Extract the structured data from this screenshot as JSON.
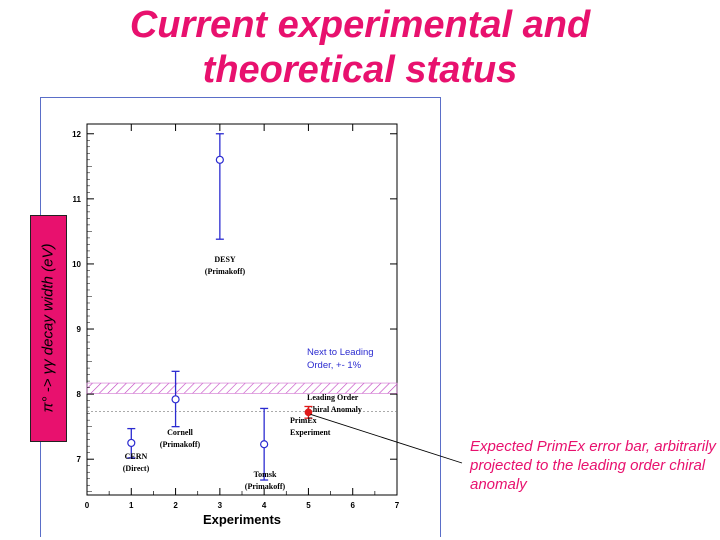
{
  "title": {
    "line1": "Current experimental and",
    "line2": "theoretical status"
  },
  "side_note": "Expected PrimEx error bar, arbitrarily projected to the leading order chiral anomaly",
  "colors": {
    "title": "#e8116e",
    "errorbar": "#2b2bd0",
    "primex": "#e01818",
    "band": "#c040c0",
    "frame": "#5a6ec8"
  },
  "chart_data": {
    "type": "scatter",
    "xlabel": "Experiments",
    "ylabel": "π° -> γγ  decay width (eV)",
    "xlim": [
      0,
      7
    ],
    "ylim": [
      6.45,
      12.15
    ],
    "x_ticks": [
      "0",
      "1",
      "2",
      "3",
      "4",
      "5",
      "6",
      "7"
    ],
    "y_ticks": [
      "7",
      "8",
      "9",
      "10",
      "11",
      "12"
    ],
    "points": [
      {
        "x": 1,
        "y": 7.25,
        "err_low": 7.02,
        "err_high": 7.47,
        "label": [
          "CERN",
          "(Direct)"
        ],
        "style": "open"
      },
      {
        "x": 2,
        "y": 7.92,
        "err_low": 7.5,
        "err_high": 8.35,
        "label": [
          "Cornell",
          "(Primakoff)"
        ],
        "style": "open"
      },
      {
        "x": 3,
        "y": 11.6,
        "err_low": 10.38,
        "err_high": 12.0,
        "label": [
          "DESY",
          "(Primakoff)"
        ],
        "style": "open"
      },
      {
        "x": 4,
        "y": 7.23,
        "err_low": 6.68,
        "err_high": 7.78,
        "label": [
          "Tomsk",
          "(Primakoff)"
        ],
        "style": "open"
      },
      {
        "x": 5,
        "y": 7.72,
        "err_low": 7.63,
        "err_high": 7.81,
        "label": [
          "PrimEx",
          "Experiment"
        ],
        "style": "filled"
      }
    ],
    "band": {
      "y_low": 8.01,
      "y_high": 8.17,
      "label": [
        "Next to Leading",
        "Order, +- 1%"
      ]
    },
    "reference_line": {
      "y": 7.73,
      "label": [
        "Leading Order",
        "Chiral Anomaly"
      ]
    }
  }
}
